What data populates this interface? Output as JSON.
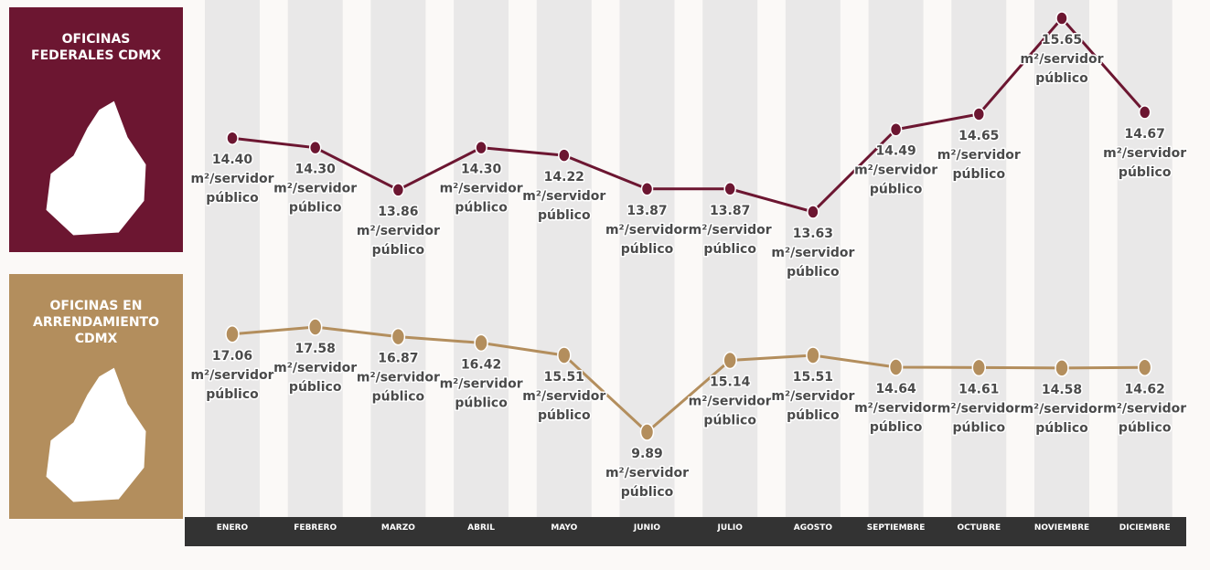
{
  "chart_data": {
    "type": "line",
    "categories": [
      "ENERO",
      "FEBRERO",
      "MARZO",
      "ABRIL",
      "MAYO",
      "JUNIO",
      "JULIO",
      "AGOSTO",
      "SEPTIEMBRE",
      "OCTUBRE",
      "NOVIEMBRE",
      "DICIEMBRE"
    ],
    "unit_lines": [
      "m²/servidor",
      "público"
    ],
    "series": [
      {
        "name": "OFICINAS FEDERALES CDMX",
        "color": "#6c1631",
        "values": [
          14.4,
          14.3,
          13.86,
          14.3,
          14.22,
          13.87,
          13.87,
          13.63,
          14.49,
          14.65,
          15.65,
          14.67
        ],
        "value_labels": [
          "14.40",
          "14.30",
          "13.86",
          "14.30",
          "14.22",
          "13.87",
          "13.87",
          "13.63",
          "14.49",
          "14.65",
          "15.65",
          "14.67"
        ]
      },
      {
        "name": "OFICINAS EN ARRENDAMIENTO CDMX",
        "color": "#b38e5d",
        "values": [
          17.06,
          17.58,
          16.87,
          16.42,
          15.51,
          9.89,
          15.14,
          15.51,
          14.64,
          14.61,
          14.58,
          14.62
        ],
        "value_labels": [
          "17.06",
          "17.58",
          "16.87",
          "16.42",
          "15.51",
          "9.89",
          "15.14",
          "15.51",
          "14.64",
          "14.61",
          "14.58",
          "14.62"
        ]
      }
    ]
  }
}
